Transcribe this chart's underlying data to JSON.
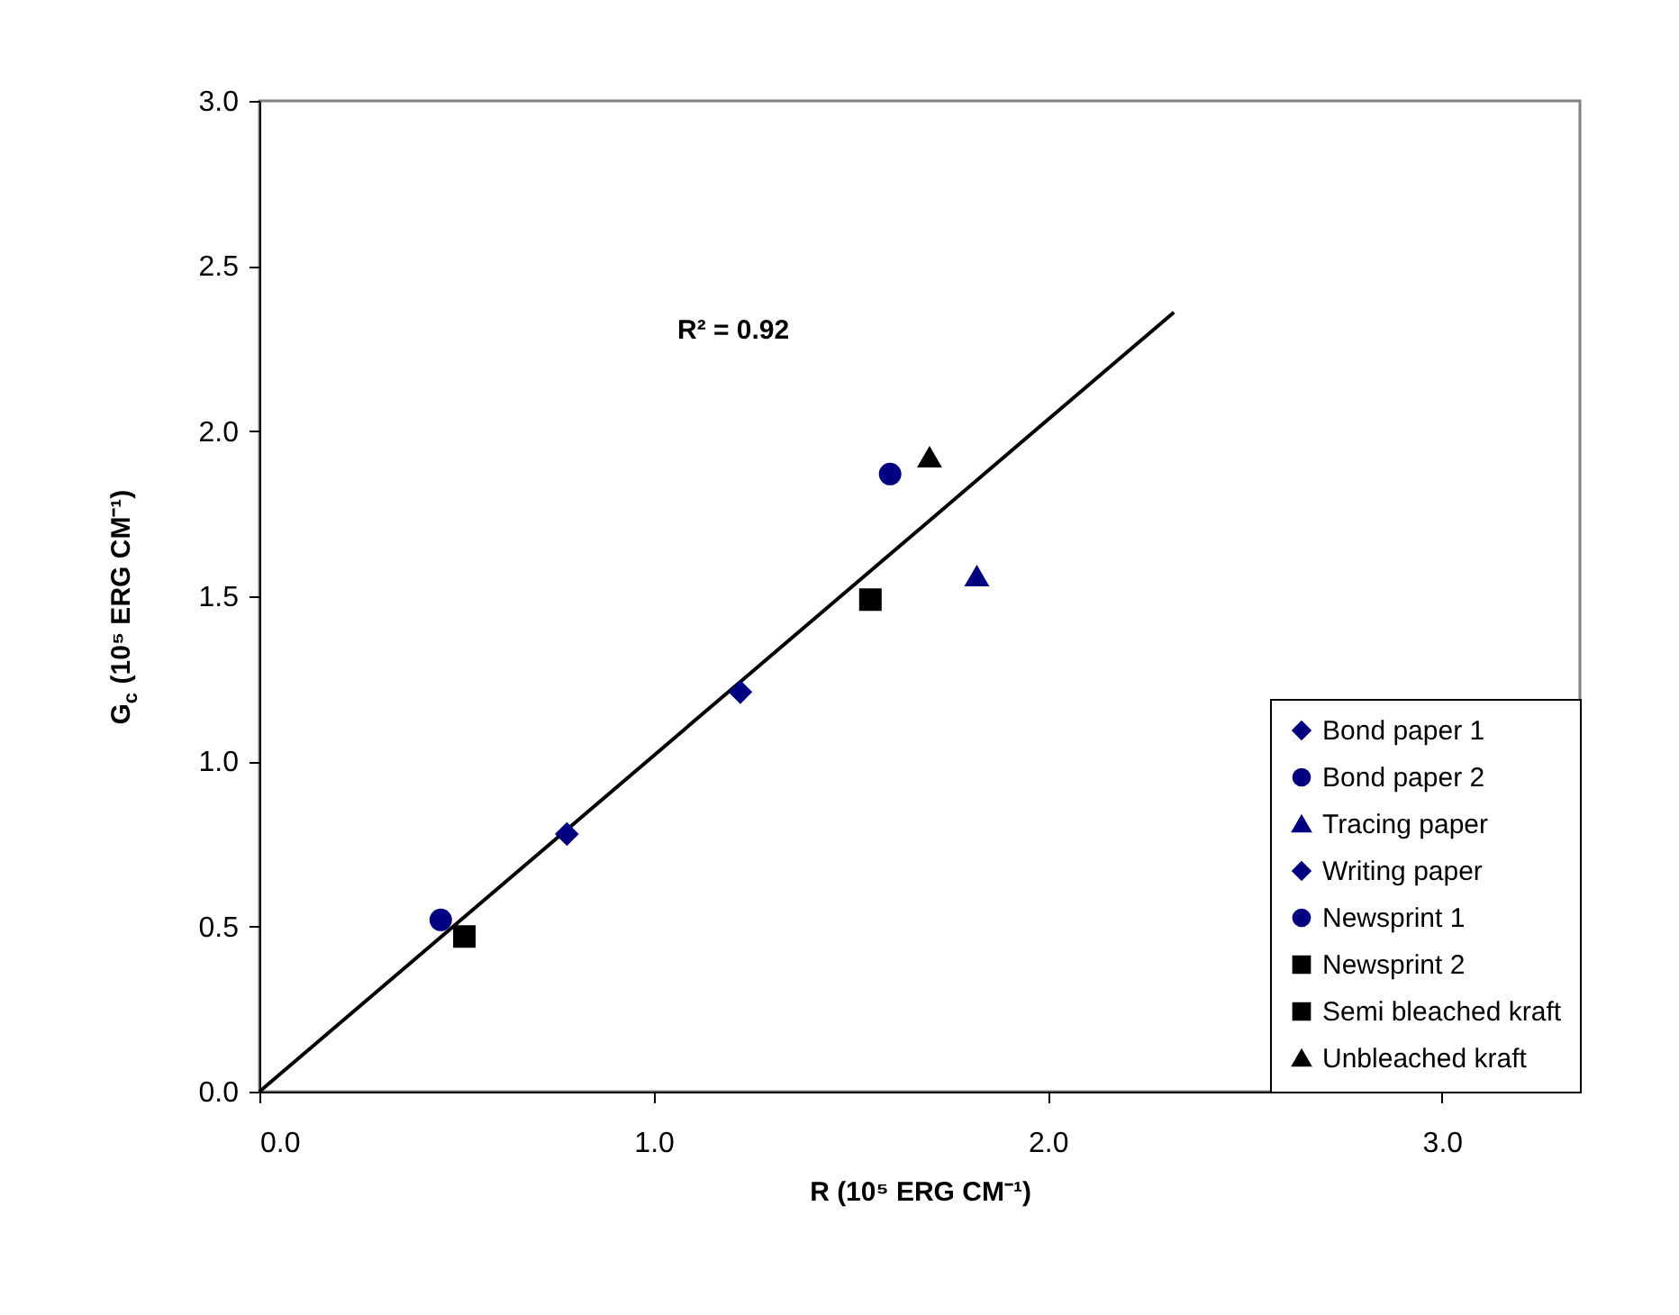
{
  "chart_data": {
    "type": "scatter",
    "xlabel": "R (10⁵ ERG CM⁻¹)",
    "ylabel": "G$_{c}$ (10⁵ ERG CM⁻¹)",
    "xlim": [
      0,
      3.35
    ],
    "ylim": [
      0,
      3.0
    ],
    "xticks": [
      {
        "value": 0,
        "label": "0.0"
      },
      {
        "value": 1,
        "label": "1.0"
      },
      {
        "value": 2,
        "label": "2.0"
      },
      {
        "value": 3,
        "label": "3.0"
      }
    ],
    "yticks": [
      {
        "value": 0,
        "label": "0.0"
      },
      {
        "value": 0.5,
        "label": "0.5"
      },
      {
        "value": 1,
        "label": "1.0"
      },
      {
        "value": 1.5,
        "label": "1.5"
      },
      {
        "value": 2,
        "label": "2.0"
      },
      {
        "value": 2.5,
        "label": "2.5"
      },
      {
        "value": 3,
        "label": "3.0"
      }
    ],
    "grid": false,
    "legend": "bottom right",
    "annotations": [
      "R² = 0.92"
    ],
    "series": [
      {
        "name": "Bond paper 1",
        "color": "#000080",
        "marker": "diamond",
        "x": [
          0.78
        ],
        "values": [
          0.78
        ]
      },
      {
        "name": "Bond paper 2",
        "color": "#000080",
        "marker": "circle",
        "x": [
          1.6
        ],
        "values": [
          1.87
        ]
      },
      {
        "name": "Tracing paper",
        "color": "#000080",
        "marker": "triangle",
        "x": [
          1.82
        ],
        "values": [
          1.56
        ]
      },
      {
        "name": "Writing paper",
        "color": "#000080",
        "marker": "diamond",
        "x": [
          1.22
        ],
        "values": [
          1.21
        ]
      },
      {
        "name": "Newsprint 1",
        "color": "#000080",
        "marker": "circle",
        "x": [
          0.46
        ],
        "values": [
          0.52
        ]
      },
      {
        "name": "Newsprint 2",
        "color": "#000000",
        "marker": "square",
        "x": [
          0.52
        ],
        "values": [
          0.47
        ]
      },
      {
        "name": "Semi bleached kraft",
        "color": "#000000",
        "marker": "square",
        "x": [
          1.55
        ],
        "values": [
          1.49
        ]
      },
      {
        "name": "Unbleached kraft",
        "color": "#000000",
        "marker": "triangle",
        "x": [
          1.7
        ],
        "values": [
          1.92
        ]
      },
      {
        "type": "line",
        "color": "#000000",
        "x": [
          0,
          2.32
        ],
        "values": [
          0,
          2.36
        ]
      }
    ]
  }
}
